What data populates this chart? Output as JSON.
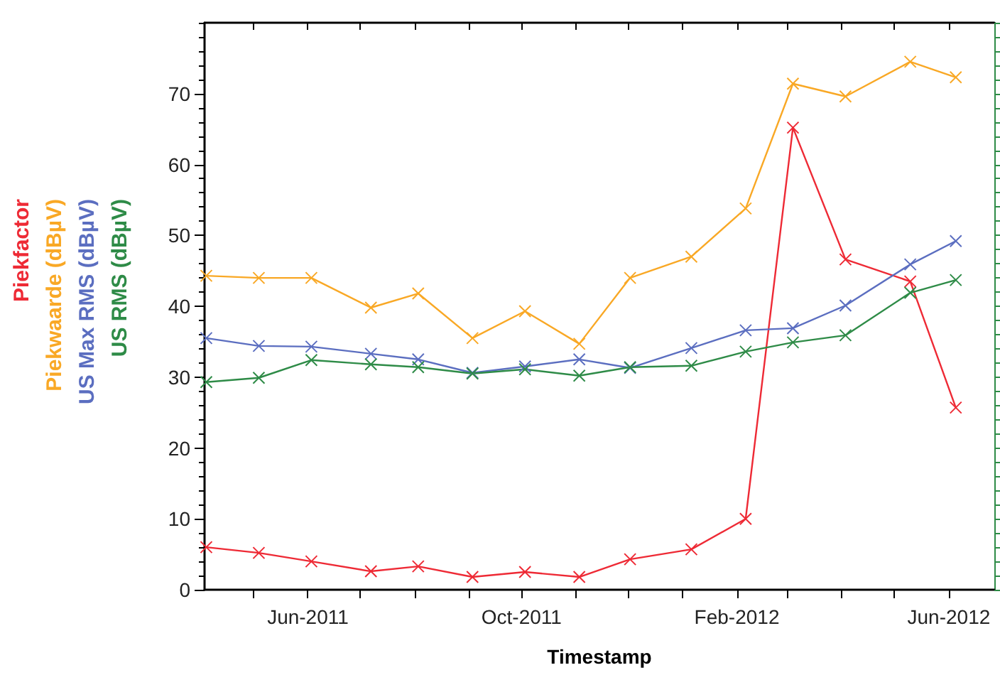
{
  "chart_data": {
    "type": "line",
    "xlabel": "Timestamp",
    "x": [
      "2011-04-04",
      "2011-05-04",
      "2011-06-03",
      "2011-07-07",
      "2011-08-03",
      "2011-09-03",
      "2011-10-03",
      "2011-11-03",
      "2011-12-02",
      "2012-01-06",
      "2012-02-06",
      "2012-03-04",
      "2012-04-03",
      "2012-05-10",
      "2012-06-05"
    ],
    "series": [
      {
        "name": "Piekfactor",
        "color": "#ee2a35",
        "values": [
          6,
          5.2,
          4,
          2.6,
          3.3,
          1.8,
          2.5,
          1.8,
          4.3,
          5.7,
          10,
          65.2,
          46.6,
          43.5,
          25.7
        ]
      },
      {
        "name": "Piekwaarde (dBµV)",
        "color": "#f9a825",
        "values": [
          44.3,
          44,
          44,
          39.8,
          41.8,
          35.5,
          39.3,
          34.7,
          44,
          47,
          53.8,
          71.4,
          69.6,
          74.5,
          72.3
        ]
      },
      {
        "name": "US Max RMS (dBµV)",
        "color": "#5b6ec0",
        "values": [
          35.5,
          34.4,
          34.3,
          33.3,
          32.5,
          30.6,
          31.5,
          32.5,
          31.3,
          34.1,
          36.6,
          36.9,
          40.1,
          45.9,
          49.2
        ]
      },
      {
        "name": "US RMS (dBµV)",
        "color": "#2e8b47",
        "values": [
          29.3,
          29.9,
          32.4,
          31.8,
          31.4,
          30.5,
          31.1,
          30.2,
          31.4,
          31.6,
          33.6,
          34.9,
          35.9,
          41.9,
          43.7
        ]
      }
    ],
    "xlim": [
      "2011-04-03",
      "2012-06-27"
    ],
    "xticks": [
      {
        "value": "2011-05-01",
        "label": null
      },
      {
        "value": "2011-06-01",
        "label": "Jun-2011"
      },
      {
        "value": "2011-07-01",
        "label": null
      },
      {
        "value": "2011-08-01",
        "label": null
      },
      {
        "value": "2011-09-01",
        "label": null
      },
      {
        "value": "2011-10-01",
        "label": "Oct-2011"
      },
      {
        "value": "2011-11-01",
        "label": null
      },
      {
        "value": "2011-12-01",
        "label": null
      },
      {
        "value": "2012-01-01",
        "label": null
      },
      {
        "value": "2012-02-01",
        "label": "Feb-2012"
      },
      {
        "value": "2012-03-01",
        "label": null
      },
      {
        "value": "2012-04-01",
        "label": null
      },
      {
        "value": "2012-05-01",
        "label": null
      },
      {
        "value": "2012-06-01",
        "label": "Jun-2012"
      }
    ],
    "ylim": [
      0,
      80
    ],
    "yticks": [
      0,
      10,
      20,
      30,
      40,
      50,
      60,
      70
    ],
    "grid": false,
    "legend": "left",
    "marker": "cross",
    "line_style": "solid"
  }
}
